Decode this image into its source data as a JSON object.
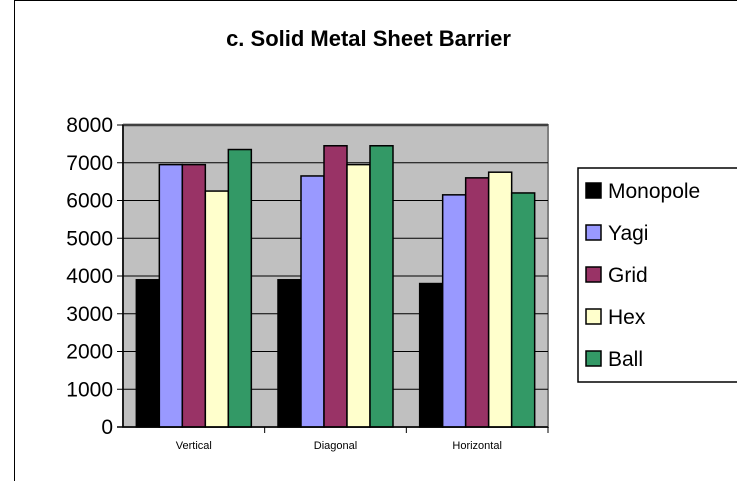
{
  "chart_data": {
    "type": "bar",
    "title": "c. Solid Metal Sheet Barrier",
    "xlabel": "",
    "ylabel": "",
    "categories": [
      "Vertical",
      "Diagonal",
      "Horizontal"
    ],
    "ylim": [
      0,
      8000
    ],
    "yticks": [
      0,
      1000,
      2000,
      3000,
      4000,
      5000,
      6000,
      7000,
      8000
    ],
    "grid": true,
    "legend_position": "right",
    "series": [
      {
        "name": "Monopole",
        "color": "#000000",
        "values": [
          3900,
          3900,
          3800
        ]
      },
      {
        "name": "Yagi",
        "color": "#9999ff",
        "values": [
          6950,
          6650,
          6150
        ]
      },
      {
        "name": "Grid",
        "color": "#993366",
        "values": [
          6950,
          7450,
          6600
        ]
      },
      {
        "name": "Hex",
        "color": "#ffffcc",
        "values": [
          6250,
          6950,
          6750
        ]
      },
      {
        "name": "Ball",
        "color": "#339966",
        "values": [
          7350,
          7450,
          6200
        ]
      }
    ],
    "plot_background": "#c0c0c0"
  }
}
